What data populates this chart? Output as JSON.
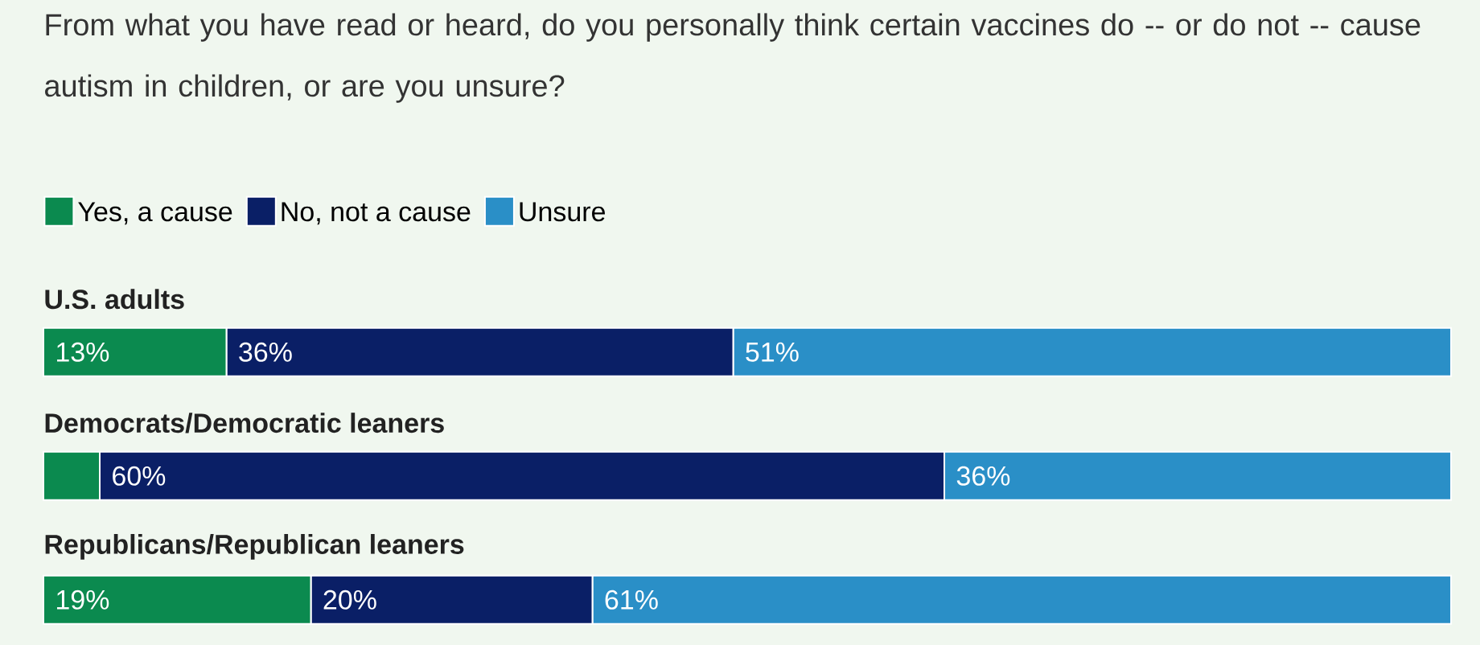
{
  "chart_data": {
    "type": "bar",
    "orientation": "horizontal",
    "stacked": true,
    "title": "From what you have read or heard, do you personally think certain vaccines do -- or do not -- cause autism in children, or are you unsure?",
    "categories": [
      "U.S. adults",
      "Democrats/Democratic leaners",
      "Republicans/Republican leaners"
    ],
    "legend": "top left",
    "series": [
      {
        "name": "Yes, a cause",
        "color": "#0b8a4f",
        "values": [
          13,
          4,
          19
        ],
        "value_labels": [
          "13%",
          null,
          "19%"
        ]
      },
      {
        "name": "No, not a cause",
        "color": "#0a1f66",
        "values": [
          36,
          60,
          20
        ],
        "value_labels": [
          "36%",
          "60%",
          "20%"
        ]
      },
      {
        "name": "Unsure",
        "color": "#2a8fc7",
        "values": [
          51,
          36,
          61
        ],
        "value_labels": [
          "51%",
          "36%",
          "61%"
        ]
      }
    ]
  }
}
